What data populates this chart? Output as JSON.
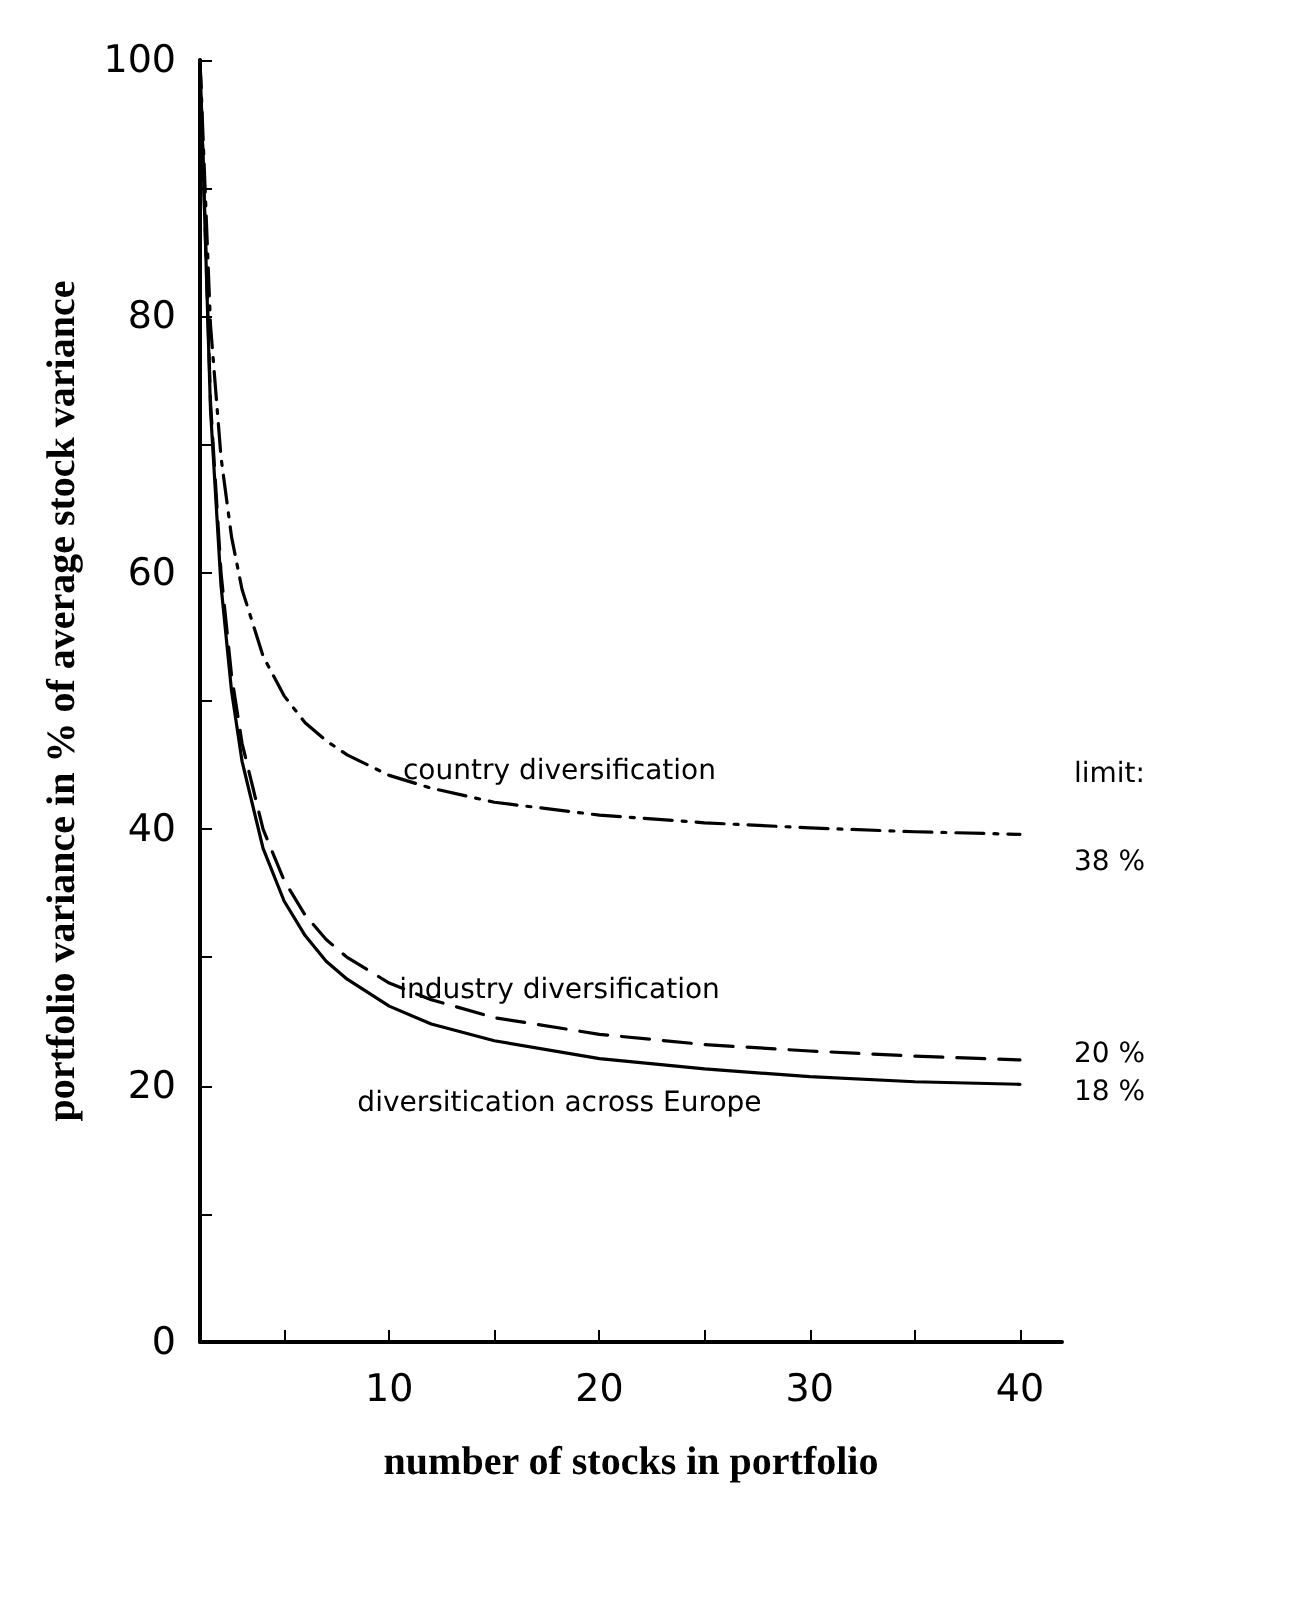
{
  "chart_data": {
    "type": "line",
    "xlabel": "number of stocks in portfolio",
    "ylabel": "portfolio variance in % of average stock variance",
    "x": [
      1,
      1.5,
      2,
      2.5,
      3,
      4,
      5,
      6,
      7,
      8,
      10,
      12,
      15,
      20,
      25,
      30,
      35,
      40
    ],
    "series": [
      {
        "name": "country diversification",
        "color": "#000000",
        "line_style": "dashdot",
        "values": [
          100,
          79.3,
          69,
          62.8,
          58.7,
          53.5,
          50.4,
          48.3,
          46.9,
          45.8,
          44.2,
          43.2,
          42.1,
          41.1,
          40.5,
          40.1,
          39.8,
          39.6
        ]
      },
      {
        "name": "industry diversification",
        "color": "#000000",
        "line_style": "dashed",
        "values": [
          100,
          73.3,
          60,
          52,
          46.7,
          40,
          36,
          33.3,
          31.4,
          30,
          28,
          26.7,
          25.3,
          24,
          23.2,
          22.7,
          22.3,
          22
        ]
      },
      {
        "name": "diversitication across Europe",
        "color": "#000000",
        "line_style": "solid",
        "values": [
          100,
          72.7,
          59,
          50.8,
          45.3,
          38.5,
          34.4,
          31.7,
          29.7,
          28.3,
          26.2,
          24.8,
          23.5,
          22.1,
          21.3,
          20.7,
          20.3,
          20.1
        ]
      }
    ],
    "xlim": [
      1,
      42
    ],
    "xticks": [
      {
        "value": 5,
        "label": null
      },
      10,
      {
        "value": 15,
        "label": null
      },
      20,
      {
        "value": 25,
        "label": null
      },
      30,
      {
        "value": 35,
        "label": null
      },
      40
    ],
    "ylim": [
      0,
      100
    ],
    "yticks": [
      0,
      {
        "value": 10,
        "label": null
      },
      20,
      {
        "value": 30,
        "label": null
      },
      40,
      {
        "value": 50,
        "label": null
      },
      60,
      {
        "value": 70,
        "label": null
      },
      80,
      {
        "value": 90,
        "label": null
      },
      100
    ],
    "annotations": [
      "limit:",
      "38 %",
      "20 %",
      "18 %"
    ],
    "grid": false,
    "legend": false,
    "marker": "none"
  }
}
